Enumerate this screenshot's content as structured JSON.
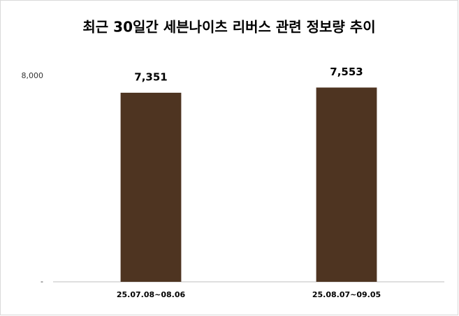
{
  "chart_data": {
    "type": "bar",
    "title": "최근 30일간 세븐나이츠 리버스 관련 정보량 추이",
    "categories": [
      "25.07.08~08.06",
      "25.08.07~09.05"
    ],
    "values": [
      7351,
      7553
    ],
    "value_labels": [
      "7,351",
      "7,553"
    ],
    "color": "#4e3421",
    "ylim": [
      0,
      8000
    ],
    "yticks": [
      {
        "value": 0,
        "label": "-"
      },
      {
        "value": 8000,
        "label": "8,000"
      }
    ],
    "grid": false
  }
}
